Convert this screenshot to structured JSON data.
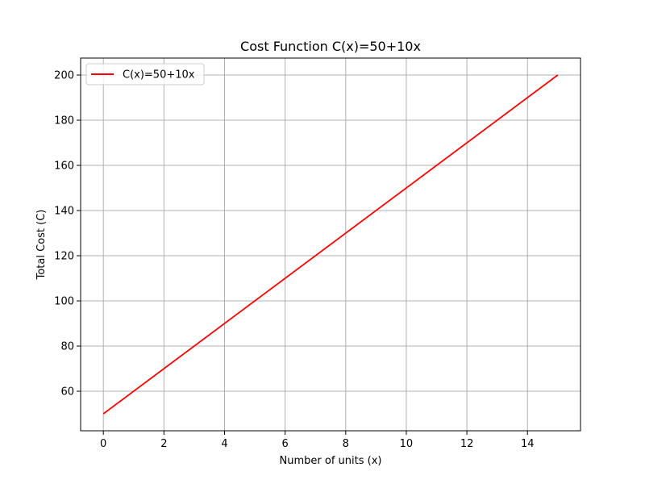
{
  "chart_data": {
    "type": "line",
    "title": "Cost Function C(x)=50+10x",
    "xlabel": "Number of units (x)",
    "ylabel": "Total Cost (C)",
    "xlim": [
      -0.75,
      15.75
    ],
    "ylim": [
      42.5,
      207.5
    ],
    "xticks": [
      0,
      2,
      4,
      6,
      8,
      10,
      12,
      14
    ],
    "yticks": [
      60,
      80,
      100,
      120,
      140,
      160,
      180,
      200
    ],
    "grid": true,
    "legend_position": "upper-left",
    "series": [
      {
        "name": "C(x)=50+10x",
        "color": "#ff0000",
        "x": [
          0,
          15
        ],
        "y": [
          50,
          200
        ]
      }
    ]
  }
}
